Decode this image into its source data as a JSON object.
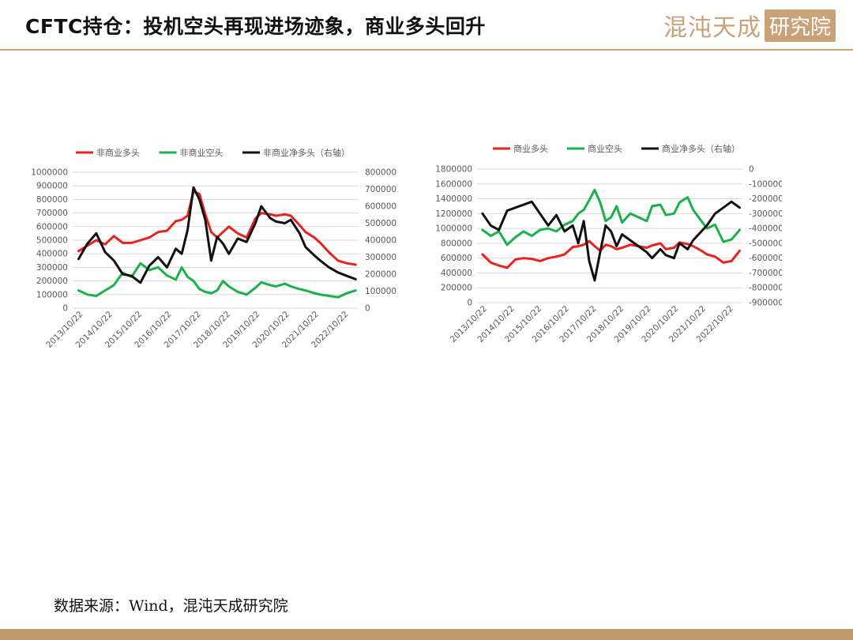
{
  "header": {
    "title": "CFTC持仓：投机空头再现进场迹象，商业多头回升",
    "logo_script": "混沌天成",
    "logo_box": "研究院"
  },
  "footer": {
    "source": "数据来源：Wind，混沌天成研究院"
  },
  "colors": {
    "accent": "#c9a27a",
    "red": "#e8231f",
    "green": "#19b14a",
    "black": "#111111"
  },
  "chart_data": [
    {
      "type": "line",
      "x_tick_labels": [
        "2013/10/22",
        "2014/10/22",
        "2015/10/22",
        "2016/10/22",
        "2017/10/22",
        "2018/10/22",
        "2019/10/22",
        "2020/10/22",
        "2021/10/22",
        "2022/10/22"
      ],
      "xlim": [
        2013.6,
        2023.3
      ],
      "y_left": {
        "ylim": [
          0,
          1000000
        ],
        "ticks": [
          "0",
          "100000",
          "200000",
          "300000",
          "400000",
          "500000",
          "600000",
          "700000",
          "800000",
          "900000",
          "1000000"
        ]
      },
      "y_right": {
        "ylim": [
          0,
          800000
        ],
        "ticks": [
          "0",
          "100000",
          "200000",
          "300000",
          "400000",
          "500000",
          "600000",
          "700000",
          "800000"
        ]
      },
      "grid": true,
      "legend": "top",
      "series": [
        {
          "name": "非商业多头",
          "axis": "left",
          "color": "#e8231f",
          "x": [
            2013.8,
            2014.1,
            2014.4,
            2014.7,
            2015.0,
            2015.3,
            2015.6,
            2015.9,
            2016.2,
            2016.5,
            2016.8,
            2017.1,
            2017.3,
            2017.5,
            2017.7,
            2017.9,
            2018.1,
            2018.3,
            2018.5,
            2018.7,
            2018.9,
            2019.2,
            2019.5,
            2019.8,
            2020.0,
            2020.3,
            2020.5,
            2020.8,
            2021.0,
            2021.3,
            2021.5,
            2021.8,
            2022.0,
            2022.3,
            2022.6,
            2022.9,
            2023.2
          ],
          "values": [
            420000,
            460000,
            500000,
            470000,
            530000,
            480000,
            480000,
            500000,
            520000,
            560000,
            570000,
            640000,
            650000,
            680000,
            860000,
            840000,
            690000,
            560000,
            520000,
            560000,
            600000,
            550000,
            520000,
            660000,
            700000,
            690000,
            680000,
            690000,
            680000,
            610000,
            560000,
            520000,
            480000,
            410000,
            350000,
            330000,
            320000
          ]
        },
        {
          "name": "非商业空头",
          "axis": "left",
          "color": "#19b14a",
          "x": [
            2013.8,
            2014.1,
            2014.4,
            2014.7,
            2015.0,
            2015.3,
            2015.6,
            2015.9,
            2016.2,
            2016.5,
            2016.8,
            2017.1,
            2017.3,
            2017.5,
            2017.7,
            2017.9,
            2018.1,
            2018.3,
            2018.5,
            2018.7,
            2018.9,
            2019.2,
            2019.5,
            2019.8,
            2020.0,
            2020.3,
            2020.5,
            2020.8,
            2021.0,
            2021.3,
            2021.5,
            2021.8,
            2022.0,
            2022.3,
            2022.6,
            2022.9,
            2023.2
          ],
          "values": [
            130000,
            100000,
            90000,
            130000,
            170000,
            260000,
            230000,
            330000,
            280000,
            300000,
            240000,
            210000,
            300000,
            230000,
            200000,
            140000,
            120000,
            110000,
            130000,
            200000,
            160000,
            120000,
            100000,
            150000,
            190000,
            170000,
            160000,
            180000,
            160000,
            140000,
            130000,
            110000,
            100000,
            90000,
            80000,
            110000,
            130000
          ]
        },
        {
          "name": "非商业净多头（右轴）",
          "axis": "right",
          "color": "#111111",
          "x": [
            2013.8,
            2014.1,
            2014.4,
            2014.7,
            2015.0,
            2015.3,
            2015.6,
            2015.9,
            2016.2,
            2016.5,
            2016.8,
            2017.1,
            2017.3,
            2017.5,
            2017.7,
            2017.9,
            2018.1,
            2018.3,
            2018.5,
            2018.7,
            2018.9,
            2019.2,
            2019.5,
            2019.8,
            2020.0,
            2020.3,
            2020.5,
            2020.8,
            2021.0,
            2021.3,
            2021.5,
            2021.8,
            2022.0,
            2022.3,
            2022.6,
            2022.9,
            2023.2
          ],
          "values": [
            290000,
            380000,
            440000,
            330000,
            280000,
            200000,
            190000,
            150000,
            250000,
            300000,
            240000,
            350000,
            320000,
            460000,
            710000,
            640000,
            520000,
            280000,
            420000,
            380000,
            320000,
            410000,
            390000,
            500000,
            600000,
            530000,
            510000,
            500000,
            520000,
            440000,
            360000,
            310000,
            280000,
            240000,
            210000,
            190000,
            170000
          ]
        }
      ]
    },
    {
      "type": "line",
      "x_tick_labels": [
        "2013/10/22",
        "2014/10/22",
        "2015/10/22",
        "2016/10/22",
        "2017/10/22",
        "2018/10/22",
        "2019/10/22",
        "2020/10/22",
        "2021/10/22",
        "2022/10/22"
      ],
      "xlim": [
        2013.6,
        2023.3
      ],
      "y_left": {
        "ylim": [
          0,
          1800000
        ],
        "ticks": [
          "0",
          "200000",
          "400000",
          "600000",
          "800000",
          "1000000",
          "1200000",
          "1400000",
          "1600000",
          "1800000"
        ]
      },
      "y_right": {
        "ylim": [
          -900000,
          0
        ],
        "ticks": [
          "-900000",
          "-800000",
          "-700000",
          "-600000",
          "-500000",
          "-400000",
          "-300000",
          "-200000",
          "-100000",
          "0"
        ]
      },
      "grid": true,
      "legend": "top",
      "series": [
        {
          "name": "商业多头",
          "axis": "left",
          "color": "#e8231f",
          "x": [
            2013.8,
            2014.1,
            2014.4,
            2014.7,
            2015.0,
            2015.3,
            2015.6,
            2015.9,
            2016.2,
            2016.5,
            2016.8,
            2017.1,
            2017.3,
            2017.5,
            2017.7,
            2017.9,
            2018.1,
            2018.3,
            2018.5,
            2018.7,
            2018.9,
            2019.2,
            2019.5,
            2019.8,
            2020.0,
            2020.3,
            2020.5,
            2020.8,
            2021.0,
            2021.3,
            2021.5,
            2021.8,
            2022.0,
            2022.3,
            2022.6,
            2022.9,
            2023.2
          ],
          "values": [
            650000,
            540000,
            500000,
            470000,
            580000,
            600000,
            590000,
            560000,
            600000,
            620000,
            650000,
            750000,
            760000,
            780000,
            830000,
            760000,
            700000,
            780000,
            760000,
            720000,
            740000,
            780000,
            760000,
            740000,
            770000,
            800000,
            720000,
            740000,
            810000,
            790000,
            760000,
            700000,
            650000,
            620000,
            540000,
            560000,
            700000
          ]
        },
        {
          "name": "商业空头",
          "axis": "left",
          "color": "#19b14a",
          "x": [
            2013.8,
            2014.1,
            2014.4,
            2014.7,
            2015.0,
            2015.3,
            2015.6,
            2015.9,
            2016.2,
            2016.5,
            2016.8,
            2017.1,
            2017.3,
            2017.5,
            2017.7,
            2017.9,
            2018.1,
            2018.3,
            2018.5,
            2018.7,
            2018.9,
            2019.2,
            2019.5,
            2019.8,
            2020.0,
            2020.3,
            2020.5,
            2020.8,
            2021.0,
            2021.3,
            2021.5,
            2021.8,
            2022.0,
            2022.3,
            2022.6,
            2022.9,
            2023.2
          ],
          "values": [
            980000,
            900000,
            960000,
            780000,
            880000,
            960000,
            900000,
            980000,
            1000000,
            960000,
            1050000,
            1100000,
            1200000,
            1250000,
            1380000,
            1520000,
            1350000,
            1100000,
            1150000,
            1300000,
            1080000,
            1200000,
            1150000,
            1100000,
            1300000,
            1320000,
            1180000,
            1200000,
            1350000,
            1420000,
            1250000,
            1100000,
            1000000,
            1050000,
            820000,
            850000,
            980000
          ]
        },
        {
          "name": "商业净多头（右轴）",
          "axis": "right",
          "color": "#111111",
          "x": [
            2013.8,
            2014.1,
            2014.4,
            2014.7,
            2015.0,
            2015.3,
            2015.6,
            2015.9,
            2016.2,
            2016.5,
            2016.8,
            2017.1,
            2017.3,
            2017.5,
            2017.7,
            2017.9,
            2018.1,
            2018.3,
            2018.5,
            2018.7,
            2018.9,
            2019.2,
            2019.5,
            2019.8,
            2020.0,
            2020.3,
            2020.5,
            2020.8,
            2021.0,
            2021.3,
            2021.5,
            2021.8,
            2022.0,
            2022.3,
            2022.6,
            2022.9,
            2023.2
          ],
          "values": [
            -300000,
            -380000,
            -410000,
            -280000,
            -260000,
            -240000,
            -220000,
            -300000,
            -380000,
            -310000,
            -420000,
            -380000,
            -500000,
            -350000,
            -620000,
            -750000,
            -560000,
            -380000,
            -420000,
            -520000,
            -440000,
            -480000,
            -520000,
            -560000,
            -600000,
            -540000,
            -580000,
            -600000,
            -500000,
            -540000,
            -480000,
            -420000,
            -380000,
            -300000,
            -260000,
            -220000,
            -260000
          ]
        }
      ]
    }
  ]
}
